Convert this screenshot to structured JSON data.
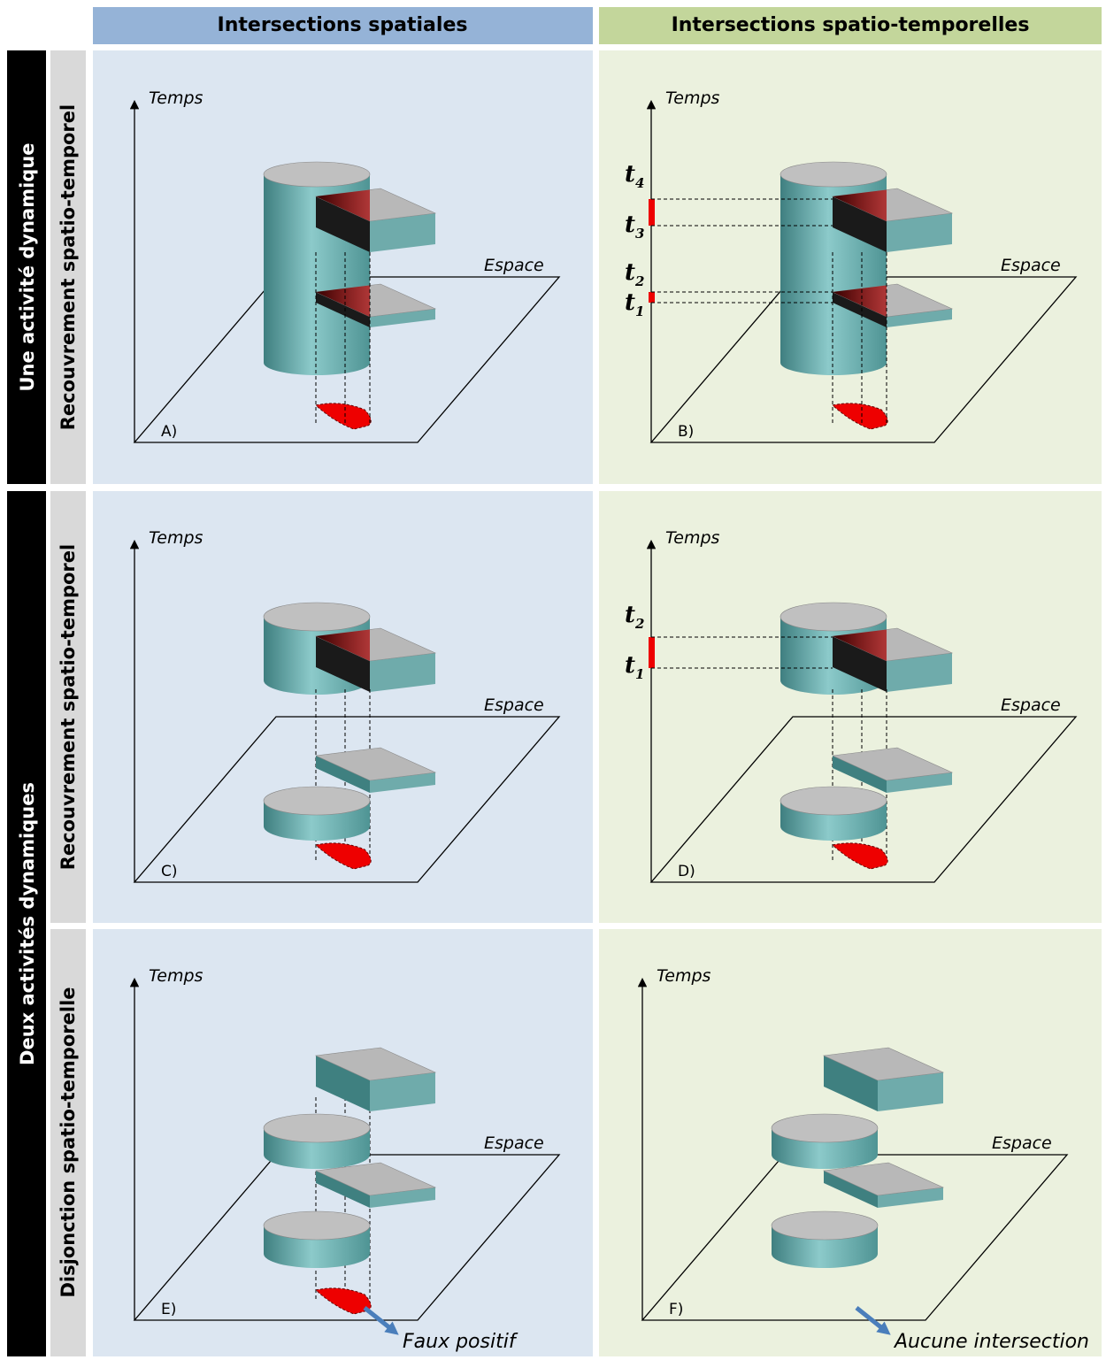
{
  "columns": [
    "Intersections spatiales",
    "Intersections spatio-temporelles"
  ],
  "row_groups": [
    "Une activité dynamique",
    "Deux activités dynamiques"
  ],
  "rows": [
    "Recouvrement spatio-temporel",
    "Recouvrement spatio-temporel",
    "Disjonction spatio-temporelle"
  ],
  "panels": [
    {
      "label": "A)",
      "y_axis": "Temps",
      "x_axis": "Espace"
    },
    {
      "label": "B)",
      "y_axis": "Temps",
      "x_axis": "Espace",
      "time_marks": [
        {
          "main": "t",
          "sub": "4"
        },
        {
          "main": "t",
          "sub": "3"
        },
        {
          "main": "t",
          "sub": "2"
        },
        {
          "main": "t",
          "sub": "1"
        }
      ]
    },
    {
      "label": "C)",
      "y_axis": "Temps",
      "x_axis": "Espace"
    },
    {
      "label": "D)",
      "y_axis": "Temps",
      "x_axis": "Espace",
      "time_marks": [
        {
          "main": "t",
          "sub": "2"
        },
        {
          "main": "t",
          "sub": "1"
        }
      ]
    },
    {
      "label": "E)",
      "y_axis": "Temps",
      "x_axis": "Espace",
      "note": "Faux positif"
    },
    {
      "label": "F)",
      "y_axis": "Temps",
      "x_axis": "Espace",
      "note": "Aucune intersection"
    }
  ]
}
